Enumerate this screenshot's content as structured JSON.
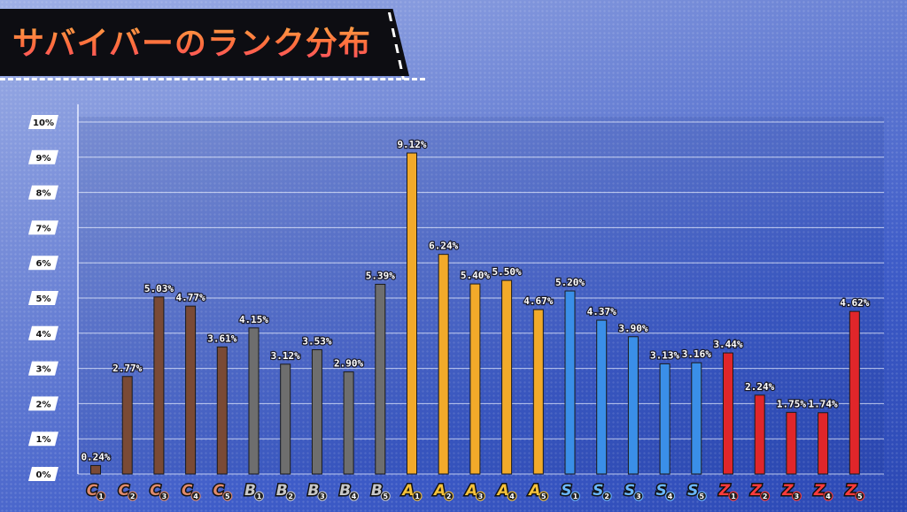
{
  "title": "サバイバーのランク分布",
  "chart_data": {
    "type": "bar",
    "title": "サバイバーのランク分布",
    "xlabel": "",
    "ylabel": "",
    "ylim": [
      0,
      10
    ],
    "yticks": [
      "0%",
      "1%",
      "2%",
      "3%",
      "4%",
      "5%",
      "6%",
      "7%",
      "8%",
      "9%",
      "10%"
    ],
    "grid": true,
    "categories": [
      "C1",
      "C2",
      "C3",
      "C4",
      "C5",
      "B1",
      "B2",
      "B3",
      "B4",
      "B5",
      "A1",
      "A2",
      "A3",
      "A4",
      "A5",
      "S1",
      "S2",
      "S3",
      "S4",
      "S5",
      "Z1",
      "Z2",
      "Z3",
      "Z4",
      "Z5"
    ],
    "values": [
      0.24,
      2.77,
      5.03,
      4.77,
      3.61,
      4.15,
      3.12,
      3.53,
      2.9,
      5.39,
      9.12,
      6.24,
      5.4,
      5.5,
      4.67,
      5.2,
      4.37,
      3.9,
      3.13,
      3.16,
      3.44,
      2.24,
      1.75,
      1.74,
      4.62
    ],
    "labels": [
      "0.24%",
      "2.77%",
      "5.03%",
      "4.77%",
      "3.61%",
      "4.15%",
      "3.12%",
      "3.53%",
      "2.90%",
      "5.39%",
      "9.12%",
      "6.24%",
      "5.40%",
      "5.50%",
      "4.67%",
      "5.20%",
      "4.37%",
      "3.90%",
      "3.13%",
      "3.16%",
      "3.44%",
      "2.24%",
      "1.75%",
      "1.74%",
      "4.62%"
    ],
    "colors": {
      "C": "#7a4a35",
      "B": "#6e6e6e",
      "A": "#f2aa2a",
      "S": "#3a8fe8",
      "Z": "#e0262a"
    },
    "rank_colors": {
      "C": "#e08a6a",
      "B": "#c8c8c8",
      "A": "#f6c23a",
      "S": "#6ab7ff",
      "Z": "#ff3b3b"
    }
  }
}
